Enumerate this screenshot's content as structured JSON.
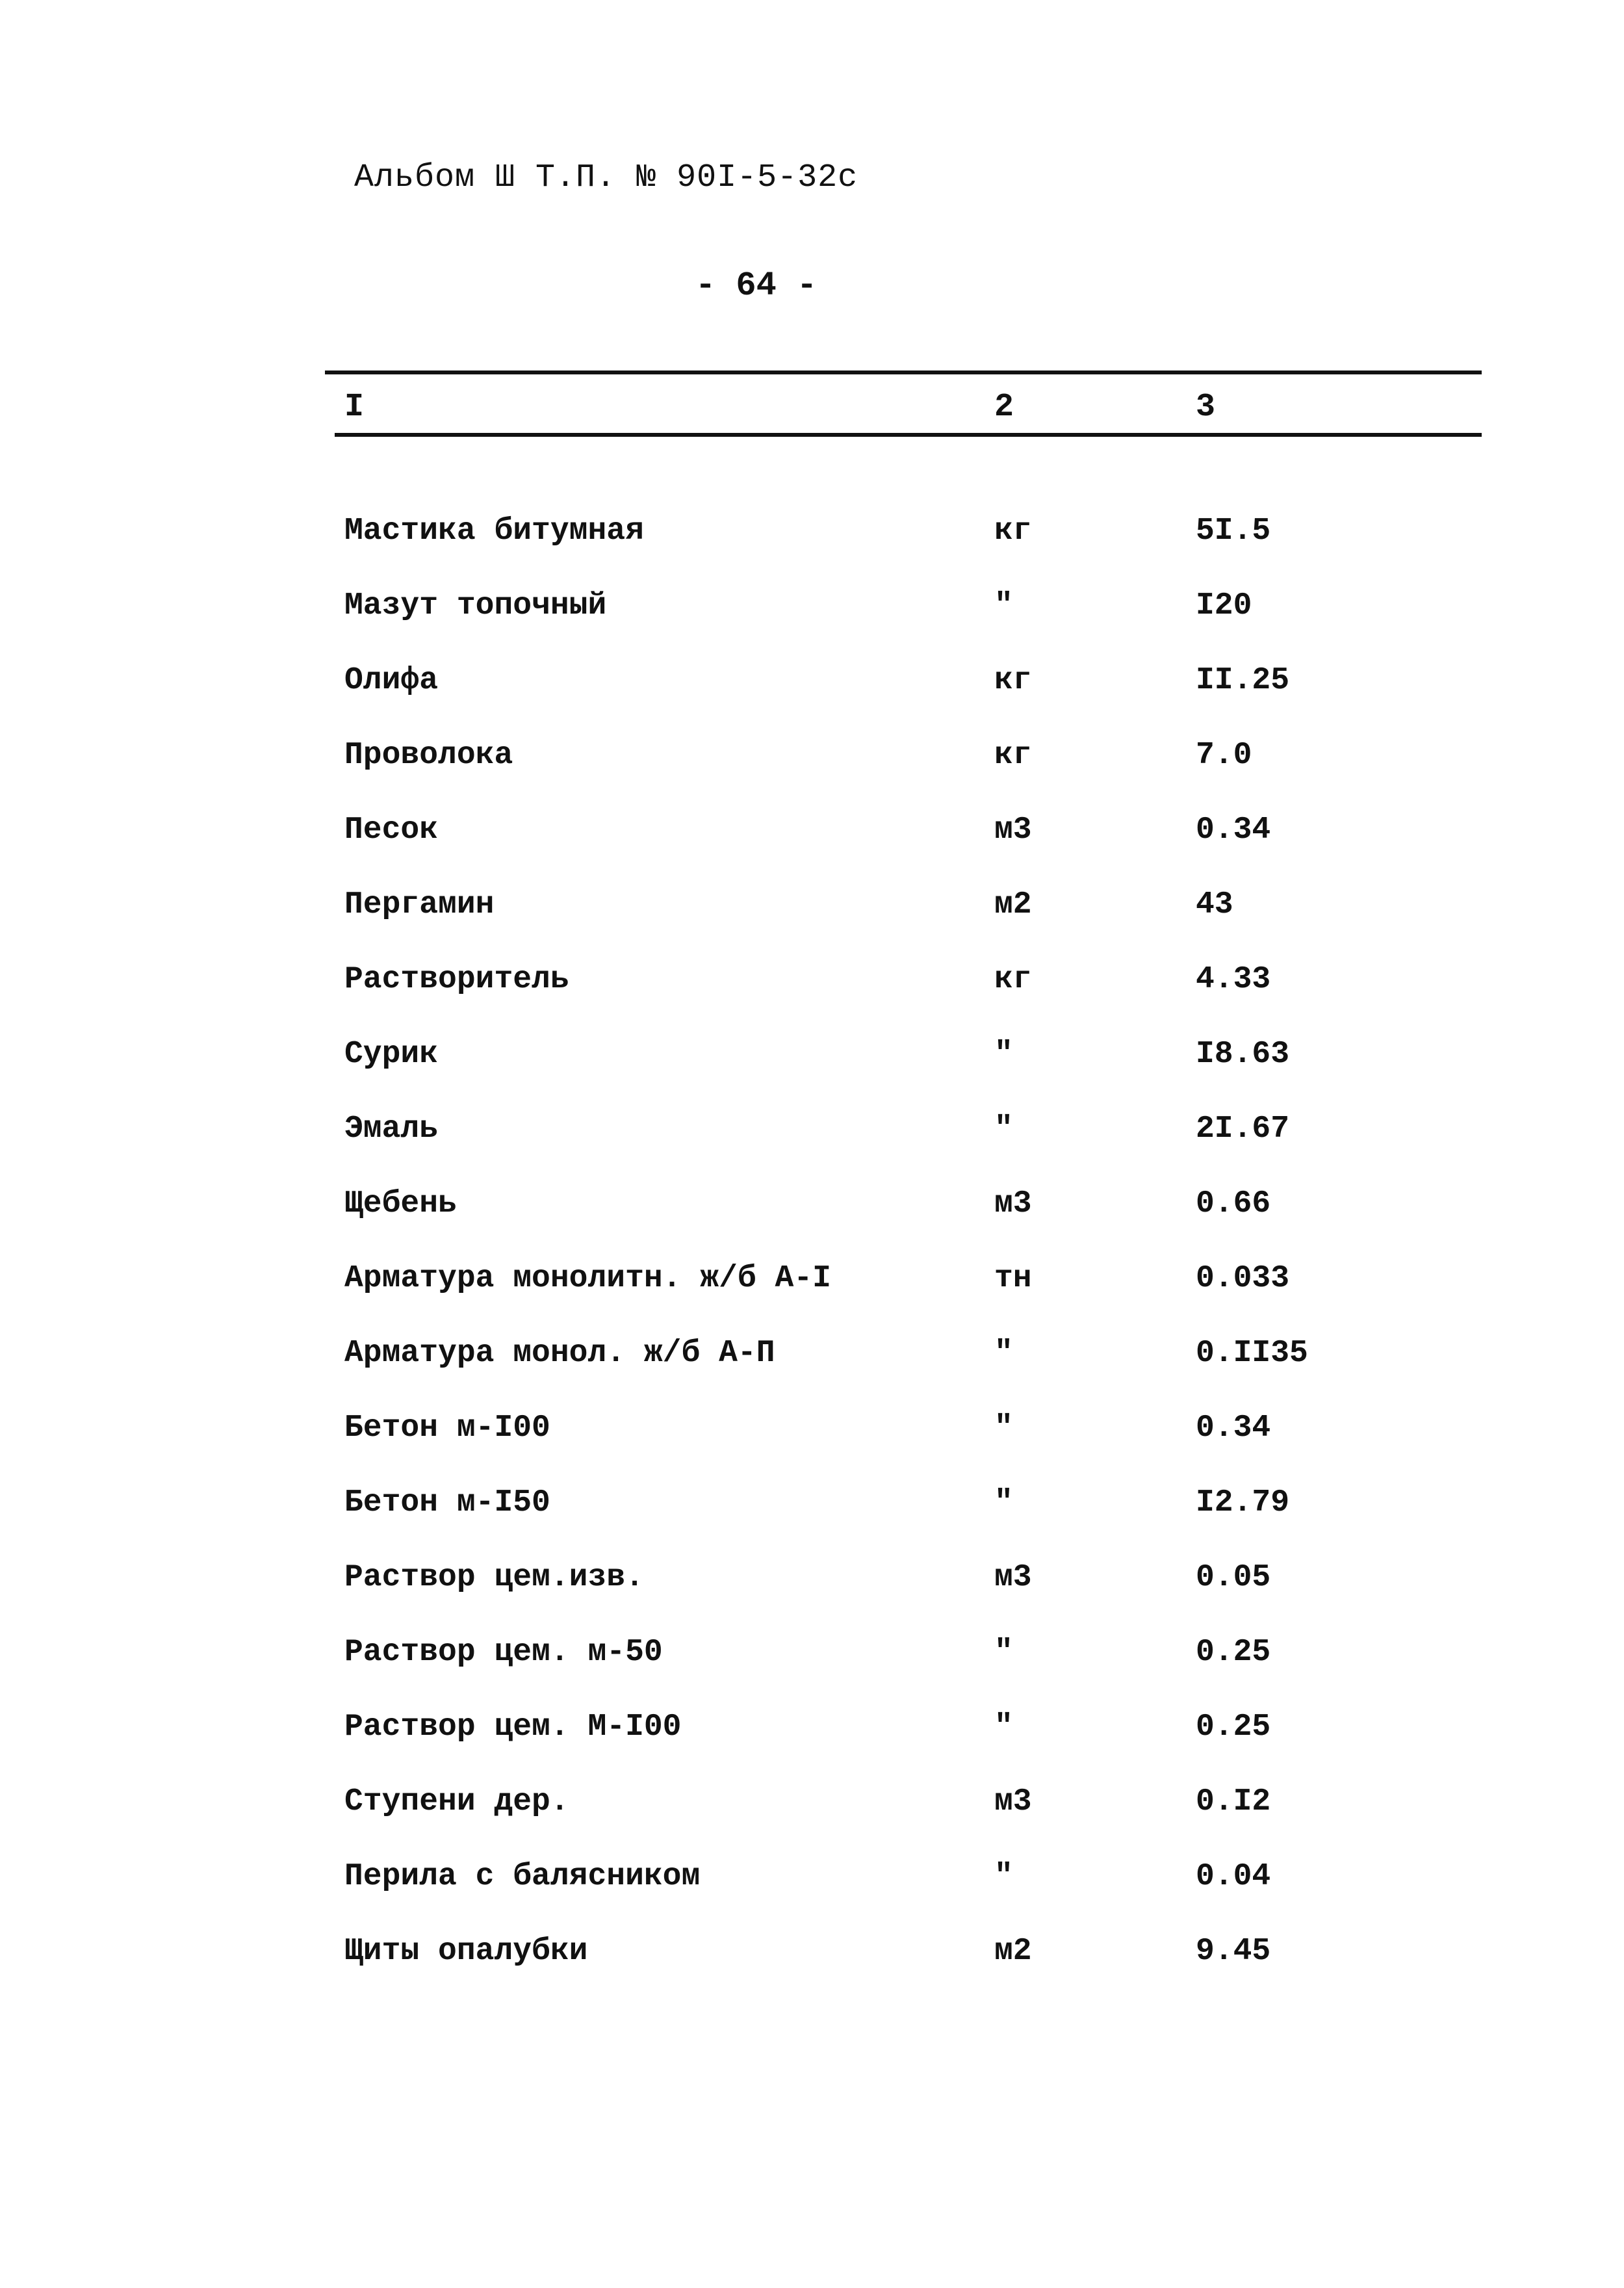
{
  "header": {
    "title": "Альбом Ш Т.П. № 90I-5-32с",
    "page_number": "- 64 -"
  },
  "table": {
    "columns": [
      "I",
      "2",
      "3"
    ],
    "rows": [
      [
        "Мастика битумная",
        "кг",
        "5I.5"
      ],
      [
        "Мазут топочный",
        "\"",
        "I20"
      ],
      [
        "Олифа",
        "кг",
        "II.25"
      ],
      [
        "Проволока",
        "кг",
        "7.0"
      ],
      [
        "Песок",
        "м3",
        "0.34"
      ],
      [
        "Пергамин",
        "м2",
        "43"
      ],
      [
        "Растворитель",
        "кг",
        "4.33"
      ],
      [
        "Сурик",
        "\"",
        "I8.63"
      ],
      [
        "Эмаль",
        "\"",
        "2I.67"
      ],
      [
        "Щебень",
        "м3",
        "0.66"
      ],
      [
        "Арматура монолитн. ж/б А-I",
        "тн",
        "0.033"
      ],
      [
        "Арматура монол. ж/б А-П",
        "\"",
        "0.II35"
      ],
      [
        "Бетон м-I00",
        "\"",
        "0.34"
      ],
      [
        "Бетон м-I50",
        "\"",
        "I2.79"
      ],
      [
        "Раствор цем.изв.",
        "м3",
        "0.05"
      ],
      [
        "Раствор цем. м-50",
        "\"",
        "0.25"
      ],
      [
        "Раствор цем. М-I00",
        "\"",
        "0.25"
      ],
      [
        "Ступени дер.",
        "м3",
        "0.I2"
      ],
      [
        "Перила с балясником",
        "\"",
        "0.04"
      ],
      [
        "Щиты опалубки",
        "м2",
        "9.45"
      ]
    ]
  }
}
